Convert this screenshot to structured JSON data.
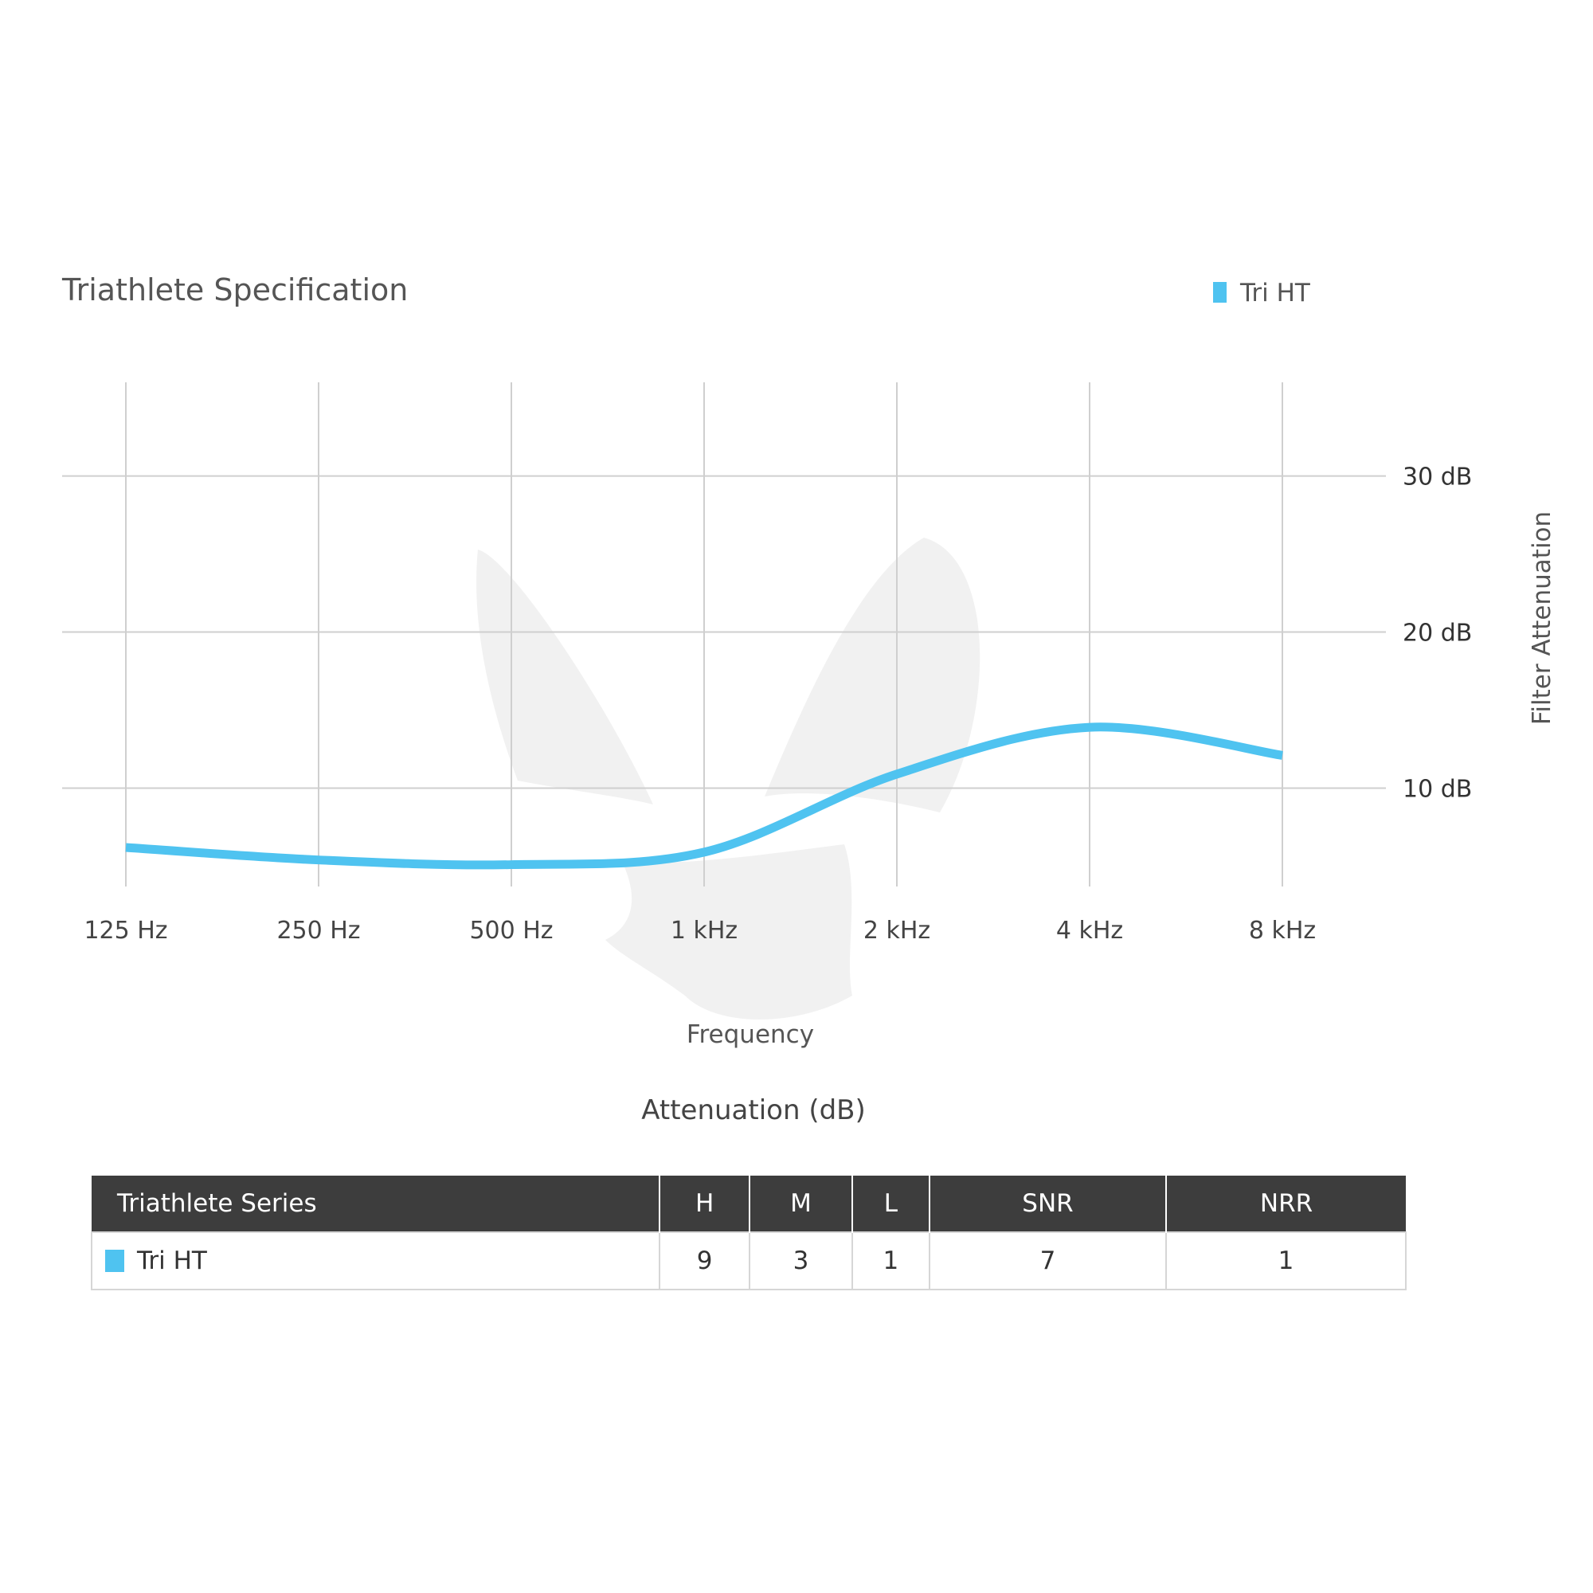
{
  "colors": {
    "series": "#4fc3f0",
    "grid": "#cfcfcf",
    "header_bg": "#3d3d3d"
  },
  "chart_data": {
    "type": "line",
    "title": "Triathlete Specification",
    "x": [
      "125 Hz",
      "250 Hz",
      "500 Hz",
      "1 kHz",
      "2 kHz",
      "4 kHz",
      "8 kHz"
    ],
    "series": [
      {
        "name": "Tri HT",
        "values": [
          6.2,
          5.4,
          5.1,
          5.9,
          10.9,
          13.9,
          12.1
        ]
      }
    ],
    "y_ticks": [
      {
        "value": 10,
        "label": "10 dB"
      },
      {
        "value": 20,
        "label": "20 dB"
      },
      {
        "value": 30,
        "label": "30 dB"
      }
    ],
    "ylim": [
      3.7,
      36
    ],
    "xlabel": "Frequency",
    "ylabel": "Filter Attenuation",
    "grid": true,
    "legend_position": "top-right",
    "caption": "Attenuation (dB)"
  },
  "table": {
    "headers": [
      "Triathlete Series",
      "H",
      "M",
      "L",
      "SNR",
      "NRR"
    ],
    "rows": [
      {
        "name": "Tri HT",
        "values": [
          "9",
          "3",
          "1",
          "7",
          "1"
        ]
      }
    ]
  }
}
